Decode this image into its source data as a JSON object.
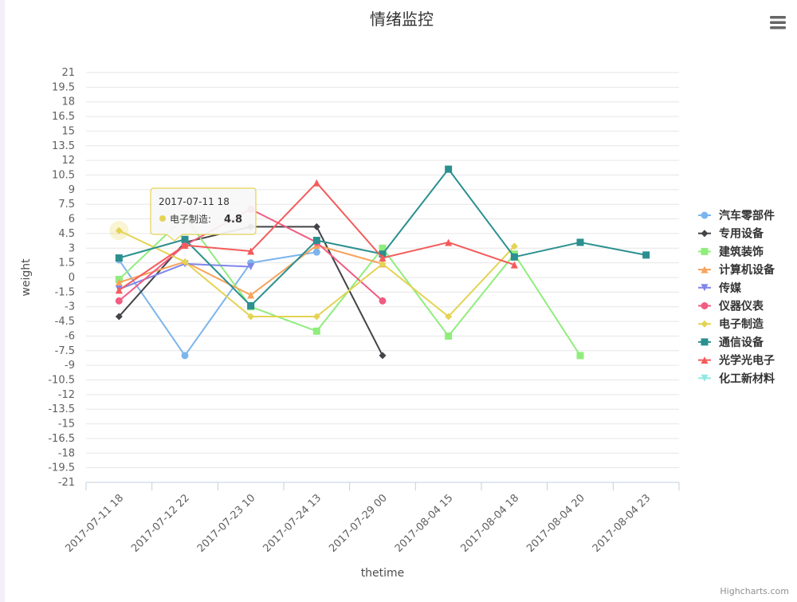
{
  "chart_data": {
    "type": "line",
    "title": "情绪监控",
    "xlabel": "thetime",
    "ylabel": "weight",
    "categories": [
      "2017-07-11 18",
      "2017-07-12 22",
      "2017-07-23 10",
      "2017-07-24 13",
      "2017-07-29 00",
      "2017-08-04 15",
      "2017-08-04 18",
      "2017-08-04 20",
      "2017-08-04 23"
    ],
    "y_ticks": [
      "21",
      "19.5",
      "18",
      "16.5",
      "15",
      "13.5",
      "12",
      "10.5",
      "9",
      "7.5",
      "6",
      "4.5",
      "3",
      "1.5",
      "0",
      "-1.5",
      "-3",
      "-4.5",
      "-6",
      "-7.5",
      "-9",
      "-10.5",
      "-12",
      "-13.5",
      "-15",
      "-16.5",
      "-18",
      "-19.5",
      "-21"
    ],
    "ylim": [
      -21,
      21
    ],
    "grid": true,
    "legend_position": "right",
    "series": [
      {
        "name": "汽车零部件",
        "color": "#7cb5ec",
        "marker": "circle",
        "values": [
          1.8,
          -8,
          1.5,
          2.6,
          null,
          null,
          null,
          null,
          null
        ]
      },
      {
        "name": "专用设备",
        "color": "#434348",
        "marker": "diamond",
        "values": [
          -4,
          3.6,
          5.2,
          5.2,
          -8,
          null,
          null,
          null,
          null
        ]
      },
      {
        "name": "建筑装饰",
        "color": "#90ed7d",
        "marker": "square",
        "values": [
          -0.2,
          6.2,
          -3,
          -5.5,
          3,
          -6,
          2.4,
          -8,
          null
        ]
      },
      {
        "name": "计算机设备",
        "color": "#f7a35c",
        "marker": "triangle",
        "values": [
          -0.5,
          1.6,
          -1.8,
          3.3,
          1.4,
          null,
          null,
          null,
          null
        ]
      },
      {
        "name": "传媒",
        "color": "#8085e9",
        "marker": "triangle-down",
        "values": [
          -1.2,
          1.4,
          1.1,
          null,
          null,
          null,
          null,
          null,
          null
        ]
      },
      {
        "name": "仪器仪表",
        "color": "#f15c80",
        "marker": "circle",
        "values": [
          -2.4,
          3.3,
          7,
          3.6,
          -2.4,
          null,
          null,
          null,
          null
        ]
      },
      {
        "name": "电子制造",
        "color": "#e4d354",
        "marker": "diamond",
        "values": [
          4.8,
          1.6,
          -4,
          -4,
          1.4,
          -4,
          3.2,
          null,
          null
        ]
      },
      {
        "name": "通信设备",
        "color": "#2b908f",
        "marker": "square",
        "values": [
          2,
          3.9,
          -2.9,
          3.8,
          2.4,
          11.1,
          2.1,
          3.6,
          2.3
        ]
      },
      {
        "name": "光学光电子",
        "color": "#f45b5b",
        "marker": "triangle",
        "values": [
          -1.3,
          3.3,
          2.7,
          9.7,
          2,
          3.6,
          1.3,
          null,
          null
        ]
      },
      {
        "name": "化工新材料",
        "color": "#91e8e1",
        "marker": "triangle-down",
        "values": [
          null,
          null,
          null,
          null,
          null,
          null,
          null,
          null,
          null
        ]
      }
    ],
    "tooltip": {
      "header": "2017-07-11 18",
      "series_label": "电子制造:",
      "value": "4.8",
      "series_index": 6,
      "point_index": 0
    }
  },
  "menu_icon": "hamburger-menu-icon",
  "credits": "Highcharts.com"
}
